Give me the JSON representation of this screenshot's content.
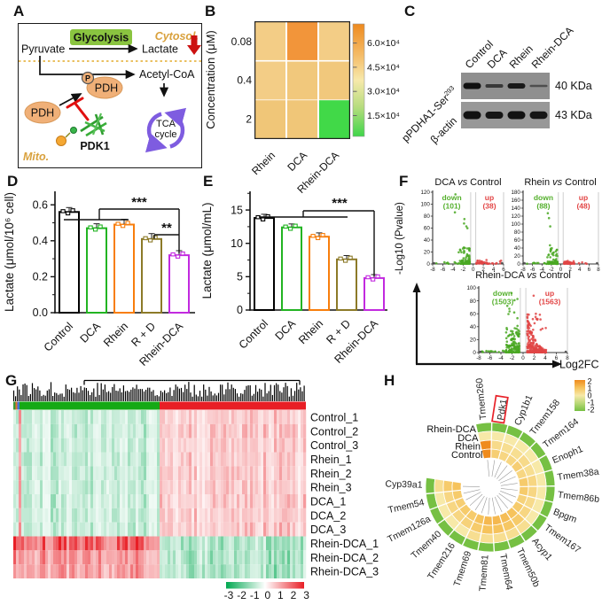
{
  "panels": {
    "A": {
      "label": "A",
      "cytosol": "Cytosol.",
      "mito": "Mito.",
      "pyruvate": "Pyruvate",
      "glycolysis": "Glycolysis",
      "lactate": "Lactate",
      "acetyl_coa": "Acetyl-CoA",
      "pdh": "PDH",
      "p_pdh": "PDH",
      "phospho": "P",
      "pdk1": "PDK1",
      "tca_line1": "TCA",
      "tca_line2": "cycle",
      "colors": {
        "glycolysis_bg": "#8ac440",
        "organelle_label": "#d9a13d",
        "pdh_fill": "#f0b078",
        "tca_arrow": "#7e5ce0",
        "inhibition_red": "#e01010",
        "lactate_arrow_red": "#cc1111"
      }
    },
    "B": {
      "label": "B"
    },
    "C": {
      "label": "C",
      "lanes": [
        "Control",
        "DCA",
        "Rhein",
        "Rhein-DCA"
      ],
      "blots": [
        {
          "antibody": "pPDHA1-Ser",
          "superscript": "293",
          "size_label": "40 KDa",
          "band_intensities": [
            1,
            0.55,
            0.9,
            0.3
          ]
        },
        {
          "antibody": "β-actin",
          "superscript": "",
          "size_label": "43 KDa",
          "band_intensities": [
            1,
            0.95,
            1,
            0.95
          ]
        }
      ]
    },
    "D": {
      "label": "D"
    },
    "E": {
      "label": "E"
    },
    "F": {
      "label": "F",
      "ylabel": "-Log10 (Pvalue)",
      "xlabel": "Log2FC"
    },
    "G": {
      "label": "G"
    },
    "H": {
      "label": "H"
    }
  },
  "chart_data": [
    {
      "id": "B",
      "type": "heatmap",
      "ylabel": "Concentration (μM)",
      "x_categories": [
        "Rhein",
        "DCA",
        "Rhein-DCA"
      ],
      "y_categories": [
        "0.08",
        "0.4",
        "2"
      ],
      "values": [
        [
          52000,
          66000,
          52000
        ],
        [
          52000,
          50000,
          50000
        ],
        [
          50000,
          49000,
          17000
        ]
      ],
      "cell_colors": [
        [
          "#f3cd86",
          "#f2953a",
          "#f3cd86"
        ],
        [
          "#f3cd86",
          "#f1c87c",
          "#f1c87c"
        ],
        [
          "#f0c678",
          "#f0c678",
          "#41d948"
        ]
      ],
      "colorbar": {
        "ticks": [
          "6.0×10⁴",
          "4.5×10⁴",
          "3.0×10⁴",
          "1.5×10⁴"
        ],
        "top_color": "#ee8a1e",
        "mid_color": "#f7e9ab",
        "bottom_color": "#3fd64a"
      }
    },
    {
      "id": "D",
      "type": "bar",
      "ylabel": "Lactate (μmol/10⁶ cell)",
      "categories": [
        "Control",
        "DCA",
        "Rhein",
        "R + D",
        "Rhein-DCA"
      ],
      "values": [
        0.56,
        0.47,
        0.49,
        0.41,
        0.32
      ],
      "errors": [
        0.015,
        0.015,
        0.02,
        0.02,
        0.015
      ],
      "colors": [
        "#000000",
        "#22b422",
        "#f87e0c",
        "#8c7a28",
        "#c22adf"
      ],
      "yticks": [
        "0.0",
        "0.2",
        "0.4",
        "0.6"
      ],
      "ytick_values": [
        0,
        0.2,
        0.4,
        0.6
      ],
      "ylim": [
        0,
        0.675
      ],
      "significance": [
        {
          "label": "***"
        },
        {
          "label": "**"
        }
      ]
    },
    {
      "id": "E",
      "type": "bar",
      "ylabel": "Lactate (μmol/mL)",
      "categories": [
        "Control",
        "DCA",
        "Rhein",
        "R + D",
        "Rhein-DCA"
      ],
      "values": [
        13.8,
        12.4,
        11.0,
        7.6,
        4.8
      ],
      "errors": [
        0.3,
        0.25,
        0.3,
        0.3,
        0.25
      ],
      "colors": [
        "#000000",
        "#22b422",
        "#f87e0c",
        "#8c7a28",
        "#c22adf"
      ],
      "yticks": [
        "0",
        "5",
        "10",
        "15"
      ],
      "ytick_values": [
        0,
        5,
        10,
        15
      ],
      "ylim": [
        0,
        17.8
      ],
      "significance": [
        {
          "label": "***"
        }
      ]
    },
    {
      "id": "F1",
      "type": "volcano",
      "title": {
        "left": "DCA",
        "vs": "vs",
        "right": "Control"
      },
      "down": {
        "label": "down",
        "count": "(101)",
        "n": 101
      },
      "up": {
        "label": "up",
        "count": "(38)",
        "n": 38
      },
      "xlim": [
        -8,
        6
      ],
      "ylim": [
        0,
        120
      ],
      "xtick_step": 2,
      "ytick_step": 20
    },
    {
      "id": "F2",
      "type": "volcano",
      "title": {
        "left": "Rhein",
        "vs": "vs",
        "right": "Control"
      },
      "down": {
        "label": "down",
        "count": "(88)",
        "n": 88
      },
      "up": {
        "label": "up",
        "count": "(48)",
        "n": 48
      },
      "xlim": [
        -8,
        8
      ],
      "ylim": [
        0,
        180
      ],
      "xtick_step": 2,
      "ytick_step": 20
    },
    {
      "id": "F3",
      "type": "volcano",
      "title": {
        "left": "Rhein-DCA",
        "vs": "vs",
        "right": "Control"
      },
      "down": {
        "label": "down",
        "count": "(1503)",
        "n": 1503
      },
      "up": {
        "label": "up",
        "count": "(1563)",
        "n": 1563
      },
      "xlim": [
        -8,
        8
      ],
      "ylim": [
        0,
        100
      ],
      "xtick_step": 2,
      "ytick_step": 20
    },
    {
      "id": "G",
      "type": "clustered-heatmap",
      "rows": [
        "Control_1",
        "Control_2",
        "Control_3",
        "Rhein_1",
        "Rhein_2",
        "Rhein_3",
        "DCA_1",
        "DCA_2",
        "DCA_3",
        "Rhein-DCA_1",
        "Rhein-DCA_2",
        "Rhein-DCA_3"
      ],
      "legend_ticks": [
        "-3",
        "-2",
        "-1",
        "0",
        "1",
        "2",
        "3"
      ],
      "low_color": "#00a850",
      "mid_color": "#ffffff",
      "high_color": "#e81e25",
      "n_display_cols": 110,
      "col_group_colors": [
        "#3a9a3a",
        "#e2702a",
        "#4472d9",
        "#15a915",
        "#e81e25"
      ]
    },
    {
      "id": "H",
      "type": "circular-heatmap",
      "genes": [
        "Tmem260",
        "Pdk1",
        "Cyp1b1",
        "Tmem158",
        "Tmem164",
        "Enoph1",
        "Tmem38a",
        "Tmem86b",
        "Bpgm",
        "Tmem167",
        "Acyp1",
        "Tmem50b",
        "Tmem64",
        "Tmem81",
        "Tmem69",
        "Tmem216",
        "Tmem40",
        "Tmem126a",
        "Tmem54",
        "Cyp39a1"
      ],
      "highlight_gene": "Pdk1",
      "rings": [
        {
          "name": "Rhein-DCA",
          "values": [
            -2,
            -2,
            -2,
            -2,
            -2,
            -2,
            -2,
            -2,
            -2,
            -2,
            -2,
            -2,
            -2,
            -2,
            -2,
            -2,
            -2,
            -2,
            -2,
            -2
          ]
        },
        {
          "name": "DCA",
          "values": [
            0,
            0,
            0,
            0,
            0,
            0,
            0,
            0,
            0,
            0,
            0.3,
            0.3,
            0.3,
            0.3,
            0.3,
            0,
            0,
            0,
            0,
            0.3
          ]
        },
        {
          "name": "Rhein",
          "values": [
            2,
            0.4,
            0.3,
            0.3,
            0.4,
            0.3,
            0.5,
            0.5,
            0.4,
            0.5,
            0.8,
            0.9,
            1,
            1,
            0.8,
            0.6,
            0.5,
            0.5,
            0.5,
            0.8
          ]
        },
        {
          "name": "Control",
          "values": [
            2,
            0.7,
            0.5,
            0.5,
            0.7,
            0.5,
            0.8,
            0.8,
            0.6,
            0.8,
            1,
            1.1,
            1.2,
            1.2,
            1,
            0.8,
            0.8,
            0.7,
            0.8,
            1
          ]
        }
      ],
      "legend_ticks": [
        "2",
        "1",
        "0",
        "-1",
        "-2"
      ],
      "scale_colors": {
        "2": "#ef8b1d",
        "1": "#f6c35c",
        "0": "#f7e9a8",
        "-1": "#b9d878",
        "-2": "#76c043"
      }
    }
  ]
}
